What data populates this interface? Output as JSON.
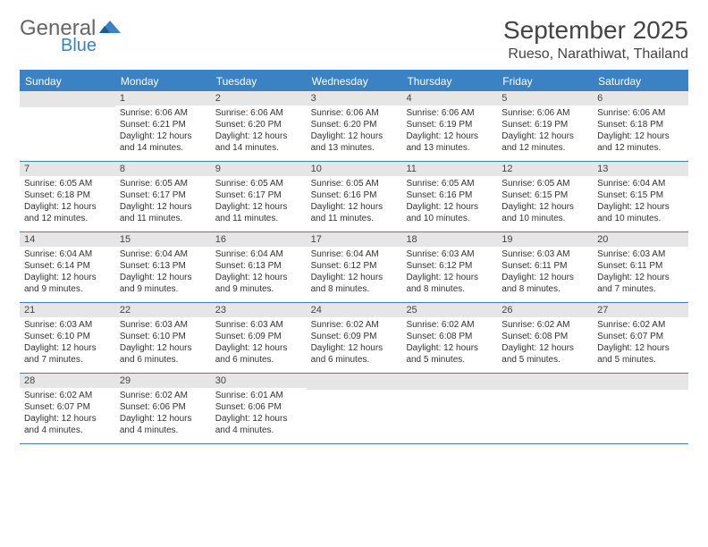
{
  "logo": {
    "word1": "General",
    "word2": "Blue"
  },
  "title": "September 2025",
  "location": "Rueso, Narathiwat, Thailand",
  "colors": {
    "accent": "#3b82c4",
    "header_bg": "#3b82c4",
    "header_text": "#ffffff",
    "daynum_bg": "#e6e6e6",
    "text": "#333333",
    "title_text": "#444444"
  },
  "day_names": [
    "Sunday",
    "Monday",
    "Tuesday",
    "Wednesday",
    "Thursday",
    "Friday",
    "Saturday"
  ],
  "weeks": [
    [
      {
        "n": "",
        "sr": "",
        "ss": "",
        "dl": ""
      },
      {
        "n": "1",
        "sr": "6:06 AM",
        "ss": "6:21 PM",
        "dl": "12 hours and 14 minutes."
      },
      {
        "n": "2",
        "sr": "6:06 AM",
        "ss": "6:20 PM",
        "dl": "12 hours and 14 minutes."
      },
      {
        "n": "3",
        "sr": "6:06 AM",
        "ss": "6:20 PM",
        "dl": "12 hours and 13 minutes."
      },
      {
        "n": "4",
        "sr": "6:06 AM",
        "ss": "6:19 PM",
        "dl": "12 hours and 13 minutes."
      },
      {
        "n": "5",
        "sr": "6:06 AM",
        "ss": "6:19 PM",
        "dl": "12 hours and 12 minutes."
      },
      {
        "n": "6",
        "sr": "6:06 AM",
        "ss": "6:18 PM",
        "dl": "12 hours and 12 minutes."
      }
    ],
    [
      {
        "n": "7",
        "sr": "6:05 AM",
        "ss": "6:18 PM",
        "dl": "12 hours and 12 minutes."
      },
      {
        "n": "8",
        "sr": "6:05 AM",
        "ss": "6:17 PM",
        "dl": "12 hours and 11 minutes."
      },
      {
        "n": "9",
        "sr": "6:05 AM",
        "ss": "6:17 PM",
        "dl": "12 hours and 11 minutes."
      },
      {
        "n": "10",
        "sr": "6:05 AM",
        "ss": "6:16 PM",
        "dl": "12 hours and 11 minutes."
      },
      {
        "n": "11",
        "sr": "6:05 AM",
        "ss": "6:16 PM",
        "dl": "12 hours and 10 minutes."
      },
      {
        "n": "12",
        "sr": "6:05 AM",
        "ss": "6:15 PM",
        "dl": "12 hours and 10 minutes."
      },
      {
        "n": "13",
        "sr": "6:04 AM",
        "ss": "6:15 PM",
        "dl": "12 hours and 10 minutes."
      }
    ],
    [
      {
        "n": "14",
        "sr": "6:04 AM",
        "ss": "6:14 PM",
        "dl": "12 hours and 9 minutes."
      },
      {
        "n": "15",
        "sr": "6:04 AM",
        "ss": "6:13 PM",
        "dl": "12 hours and 9 minutes."
      },
      {
        "n": "16",
        "sr": "6:04 AM",
        "ss": "6:13 PM",
        "dl": "12 hours and 9 minutes."
      },
      {
        "n": "17",
        "sr": "6:04 AM",
        "ss": "6:12 PM",
        "dl": "12 hours and 8 minutes."
      },
      {
        "n": "18",
        "sr": "6:03 AM",
        "ss": "6:12 PM",
        "dl": "12 hours and 8 minutes."
      },
      {
        "n": "19",
        "sr": "6:03 AM",
        "ss": "6:11 PM",
        "dl": "12 hours and 8 minutes."
      },
      {
        "n": "20",
        "sr": "6:03 AM",
        "ss": "6:11 PM",
        "dl": "12 hours and 7 minutes."
      }
    ],
    [
      {
        "n": "21",
        "sr": "6:03 AM",
        "ss": "6:10 PM",
        "dl": "12 hours and 7 minutes."
      },
      {
        "n": "22",
        "sr": "6:03 AM",
        "ss": "6:10 PM",
        "dl": "12 hours and 6 minutes."
      },
      {
        "n": "23",
        "sr": "6:03 AM",
        "ss": "6:09 PM",
        "dl": "12 hours and 6 minutes."
      },
      {
        "n": "24",
        "sr": "6:02 AM",
        "ss": "6:09 PM",
        "dl": "12 hours and 6 minutes."
      },
      {
        "n": "25",
        "sr": "6:02 AM",
        "ss": "6:08 PM",
        "dl": "12 hours and 5 minutes."
      },
      {
        "n": "26",
        "sr": "6:02 AM",
        "ss": "6:08 PM",
        "dl": "12 hours and 5 minutes."
      },
      {
        "n": "27",
        "sr": "6:02 AM",
        "ss": "6:07 PM",
        "dl": "12 hours and 5 minutes."
      }
    ],
    [
      {
        "n": "28",
        "sr": "6:02 AM",
        "ss": "6:07 PM",
        "dl": "12 hours and 4 minutes."
      },
      {
        "n": "29",
        "sr": "6:02 AM",
        "ss": "6:06 PM",
        "dl": "12 hours and 4 minutes."
      },
      {
        "n": "30",
        "sr": "6:01 AM",
        "ss": "6:06 PM",
        "dl": "12 hours and 4 minutes."
      },
      {
        "n": "",
        "sr": "",
        "ss": "",
        "dl": ""
      },
      {
        "n": "",
        "sr": "",
        "ss": "",
        "dl": ""
      },
      {
        "n": "",
        "sr": "",
        "ss": "",
        "dl": ""
      },
      {
        "n": "",
        "sr": "",
        "ss": "",
        "dl": ""
      }
    ]
  ],
  "labels": {
    "sunrise": "Sunrise:",
    "sunset": "Sunset:",
    "daylight": "Daylight:"
  }
}
